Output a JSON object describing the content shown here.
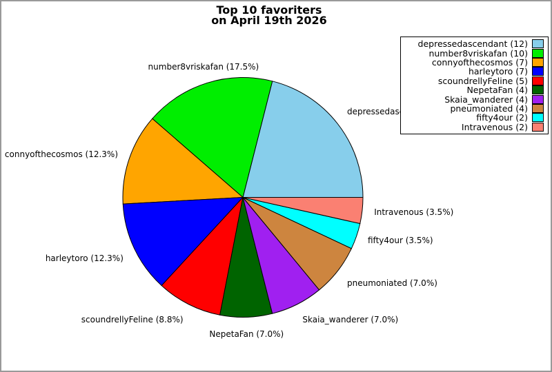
{
  "title": {
    "text": "Top 10 favoriters\non April 19th 2026"
  },
  "chart_data": {
    "type": "pie",
    "title": "Top 10 favoriters on April 19th 2026",
    "total": 57,
    "start_angle_deg": 0,
    "direction": "counterclockwise",
    "legend_position": "upper-right",
    "edge_color": "#000000",
    "categories": [
      "depressedascendant",
      "number8vriskafan",
      "connyofthecosmos",
      "harleytoro",
      "scoundrellyFeline",
      "NepetaFan",
      "Skaia_wanderer",
      "pneumoniated",
      "fifty4our",
      "Intravenous"
    ],
    "values": [
      12,
      10,
      7,
      7,
      5,
      4,
      4,
      4,
      2,
      2
    ],
    "series": [
      {
        "label": "depressedascendant",
        "value": 12,
        "pct": "21.1%",
        "slice_label": "depressedascendant (21.1%)",
        "legend_label": "depressedascendant (12)",
        "color": "#87CEEB"
      },
      {
        "label": "number8vriskafan",
        "value": 10,
        "pct": "17.5%",
        "slice_label": "number8vriskafan (17.5%)",
        "legend_label": "number8vriskafan (10)",
        "color": "#00EE00"
      },
      {
        "label": "connyofthecosmos",
        "value": 7,
        "pct": "12.3%",
        "slice_label": "connyofthecosmos (12.3%)",
        "legend_label": "connyofthecosmos (7)",
        "color": "#FFA500"
      },
      {
        "label": "harleytoro",
        "value": 7,
        "pct": "12.3%",
        "slice_label": "harleytoro (12.3%)",
        "legend_label": "harleytoro (7)",
        "color": "#0000FF"
      },
      {
        "label": "scoundrellyFeline",
        "value": 5,
        "pct": "8.8%",
        "slice_label": "scoundrellyFeline (8.8%)",
        "legend_label": "scoundrellyFeline (5)",
        "color": "#FF0000"
      },
      {
        "label": "NepetaFan",
        "value": 4,
        "pct": "7.0%",
        "slice_label": "NepetaFan (7.0%)",
        "legend_label": "NepetaFan (4)",
        "color": "#006400"
      },
      {
        "label": "Skaia_wanderer",
        "value": 4,
        "pct": "7.0%",
        "slice_label": "Skaia_wanderer (7.0%)",
        "legend_label": "Skaia_wanderer (4)",
        "color": "#A020F0"
      },
      {
        "label": "pneumoniated",
        "value": 4,
        "pct": "7.0%",
        "slice_label": "pneumoniated (7.0%)",
        "legend_label": "pneumoniated (4)",
        "color": "#CD853F"
      },
      {
        "label": "fifty4our",
        "value": 2,
        "pct": "3.5%",
        "slice_label": "fifty4our (3.5%)",
        "legend_label": "fifty4our (2)",
        "color": "#00FFFF"
      },
      {
        "label": "Intravenous",
        "value": 2,
        "pct": "3.5%",
        "slice_label": "Intravenous (3.5%)",
        "legend_label": "Intravenous (2)",
        "color": "#FA8072"
      }
    ]
  },
  "style": {
    "background": "#FFFFFF",
    "frame_border": "#999999",
    "legend_border": "#000000"
  }
}
